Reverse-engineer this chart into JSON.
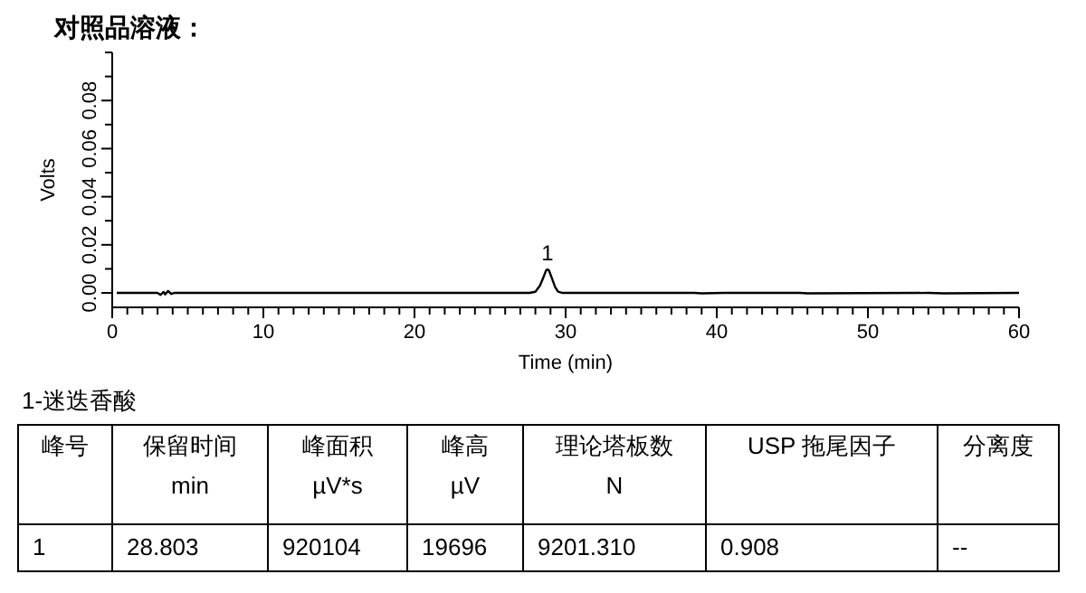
{
  "chart_data": [
    {
      "type": "line",
      "title": "对照品溶液：",
      "xlabel": "Time (min)",
      "ylabel": "Volts",
      "xlim": [
        0,
        60
      ],
      "ylim": [
        -0.006,
        0.1
      ],
      "xticks": [
        0,
        {
          "value": 1,
          "label": null
        },
        {
          "value": 2,
          "label": null
        },
        {
          "value": 3,
          "label": null
        },
        {
          "value": 4,
          "label": null
        },
        {
          "value": 5,
          "label": null
        },
        {
          "value": 6,
          "label": null
        },
        {
          "value": 7,
          "label": null
        },
        {
          "value": 8,
          "label": null
        },
        {
          "value": 9,
          "label": null
        },
        10,
        {
          "value": 11,
          "label": null
        },
        {
          "value": 12,
          "label": null
        },
        {
          "value": 13,
          "label": null
        },
        {
          "value": 14,
          "label": null
        },
        {
          "value": 15,
          "label": null
        },
        {
          "value": 16,
          "label": null
        },
        {
          "value": 17,
          "label": null
        },
        {
          "value": 18,
          "label": null
        },
        {
          "value": 19,
          "label": null
        },
        20,
        {
          "value": 21,
          "label": null
        },
        {
          "value": 22,
          "label": null
        },
        {
          "value": 23,
          "label": null
        },
        {
          "value": 24,
          "label": null
        },
        {
          "value": 25,
          "label": null
        },
        {
          "value": 26,
          "label": null
        },
        {
          "value": 27,
          "label": null
        },
        {
          "value": 28,
          "label": null
        },
        {
          "value": 29,
          "label": null
        },
        30,
        {
          "value": 31,
          "label": null
        },
        {
          "value": 32,
          "label": null
        },
        {
          "value": 33,
          "label": null
        },
        {
          "value": 34,
          "label": null
        },
        {
          "value": 35,
          "label": null
        },
        {
          "value": 36,
          "label": null
        },
        {
          "value": 37,
          "label": null
        },
        {
          "value": 38,
          "label": null
        },
        {
          "value": 39,
          "label": null
        },
        40,
        {
          "value": 41,
          "label": null
        },
        {
          "value": 42,
          "label": null
        },
        {
          "value": 43,
          "label": null
        },
        {
          "value": 44,
          "label": null
        },
        {
          "value": 45,
          "label": null
        },
        {
          "value": 46,
          "label": null
        },
        {
          "value": 47,
          "label": null
        },
        {
          "value": 48,
          "label": null
        },
        {
          "value": 49,
          "label": null
        },
        50,
        {
          "value": 51,
          "label": null
        },
        {
          "value": 52,
          "label": null
        },
        {
          "value": 53,
          "label": null
        },
        {
          "value": 54,
          "label": null
        },
        {
          "value": 55,
          "label": null
        },
        {
          "value": 56,
          "label": null
        },
        {
          "value": 57,
          "label": null
        },
        {
          "value": 58,
          "label": null
        },
        {
          "value": 59,
          "label": null
        },
        60
      ],
      "yticks": [
        {
          "value": 0,
          "label": "0.00"
        },
        {
          "value": 0.01,
          "label": null
        },
        {
          "value": 0.02,
          "label": "0.02"
        },
        {
          "value": 0.03,
          "label": null
        },
        {
          "value": 0.04,
          "label": "0.04"
        },
        {
          "value": 0.05,
          "label": null
        },
        {
          "value": 0.06,
          "label": "0.06"
        },
        {
          "value": 0.07,
          "label": null
        },
        {
          "value": 0.08,
          "label": "0.08"
        },
        {
          "value": 0.09,
          "label": null
        },
        {
          "value": 0.1,
          "label": null
        }
      ],
      "grid": false,
      "marker": "none",
      "line_style": "solid",
      "annotations": [
        {
          "text": "1",
          "x": 28.8,
          "y": 0.0098
        }
      ],
      "series": [
        {
          "color": "#000000",
          "x": [
            0.3,
            3.0,
            3.2,
            3.4,
            3.5,
            3.7,
            3.9,
            4.1,
            27.6,
            28.0,
            28.3,
            28.5,
            28.7,
            28.8,
            28.9,
            29.1,
            29.3,
            29.5,
            29.8,
            38.5,
            39.0,
            40.5,
            45.5,
            46.0,
            54.0,
            55.0,
            60
          ],
          "values": [
            0,
            0,
            -0.0008,
            0.0004,
            -0.0006,
            0.0008,
            -0.0004,
            0,
            0,
            0.0005,
            0.003,
            0.006,
            0.0093,
            0.0098,
            0.0093,
            0.006,
            0.0025,
            0.0005,
            0,
            0,
            -0.0002,
            0,
            0,
            -0.0002,
            0,
            -0.0002,
            0
          ]
        }
      ]
    },
    {
      "type": "other",
      "title": "1-迷迭香酸",
      "categories": [
        "峰号",
        "保留时间\nmin",
        "峰面积\nµV*s",
        "峰高\nµV",
        "理论塔板数\nN",
        "USP 拖尾因子",
        "分离度"
      ],
      "cell_labels": [
        [
          "1",
          "28.803",
          "920104",
          "19696",
          "9201.310",
          "0.908",
          "--"
        ]
      ]
    }
  ]
}
